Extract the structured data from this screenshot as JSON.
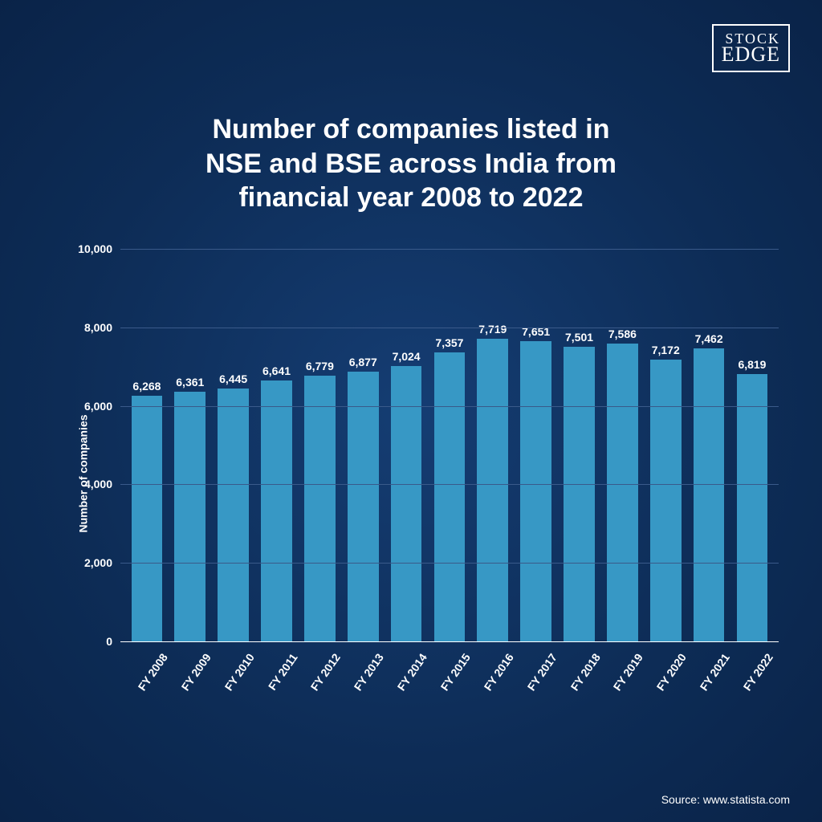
{
  "logo": {
    "line1": "STOCK",
    "line2": "EDGE"
  },
  "title": "Number of companies listed in\nNSE and BSE across India from\nfinancial year 2008 to 2022",
  "source": "Source: www.statista.com",
  "chart": {
    "type": "bar",
    "ylabel": "Number of companies",
    "ylim": [
      0,
      10000
    ],
    "ytick_step": 2000,
    "bar_color": "#3798c5",
    "grid_color": "#3a5a8a",
    "text_color": "#ffffff",
    "title_fontsize": 34,
    "label_fontsize": 14,
    "categories": [
      "FY 2008",
      "FY 2009",
      "FY 2010",
      "FY 2011",
      "FY 2012",
      "FY 2013",
      "FY 2014",
      "FY 2015",
      "FY 2016",
      "FY 2017",
      "FY 2018",
      "FY 2019",
      "FY 2020",
      "FY 2021",
      "FY 2022"
    ],
    "values": [
      6268,
      6361,
      6445,
      6641,
      6779,
      6877,
      7024,
      7357,
      7719,
      7651,
      7501,
      7586,
      7172,
      7462,
      6819
    ],
    "value_labels": [
      "6,268",
      "6,361",
      "6,445",
      "6,641",
      "6,779",
      "6,877",
      "7,024",
      "7,357",
      "7,719",
      "7,651",
      "7,501",
      "7,586",
      "7,172",
      "7,462",
      "6,819"
    ]
  }
}
